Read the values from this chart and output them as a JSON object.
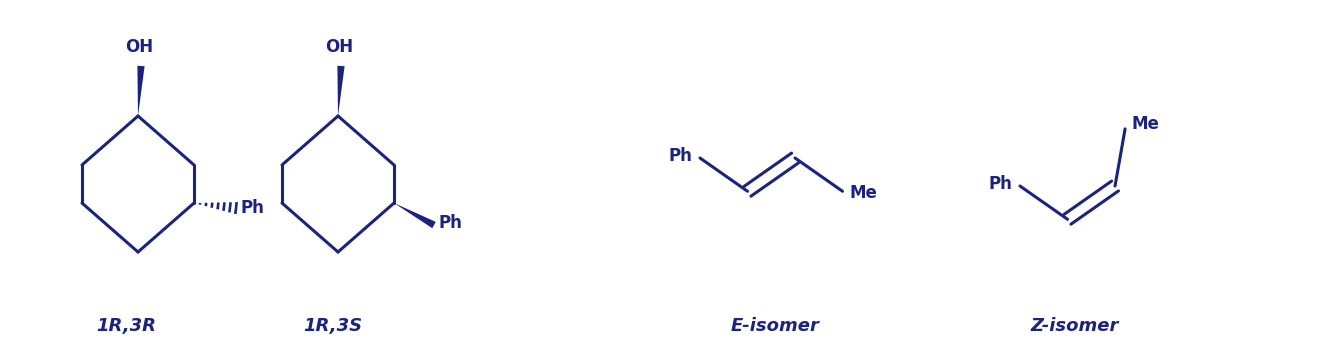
{
  "color": "#1a237e",
  "bg_color": "#ffffff",
  "line_width": 2.2,
  "fig_width": 13.24,
  "fig_height": 3.56,
  "label_1R3R": "1R,3R",
  "label_1R3S": "1R,3S",
  "label_E": "E-isomer",
  "label_Z": "Z-isomer",
  "font_size_label": 13,
  "font_size_atom": 12,
  "dpi": 100
}
